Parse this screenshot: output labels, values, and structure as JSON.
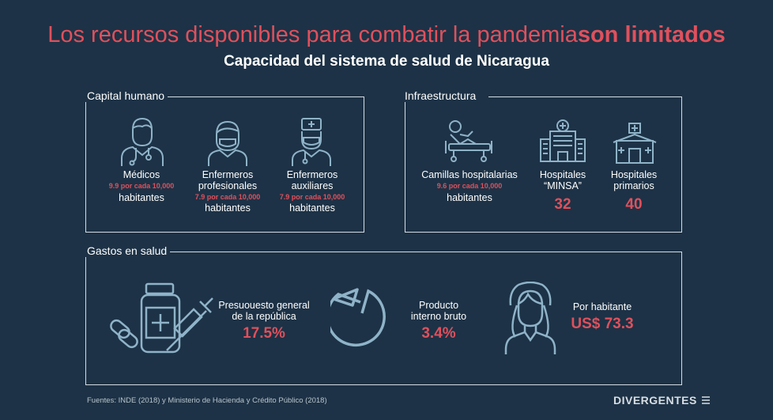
{
  "header": {
    "title_main": "Los recursos disponibles para combatir la pandemia",
    "title_highlight": "son limitados",
    "subtitle": "Capacidad del sistema de salud de Nicaragua"
  },
  "capital_humano": {
    "label": "Capital humano",
    "items": [
      {
        "icon": "doctor-icon",
        "label": "Médicos",
        "rate": "9.9 por cada 10,000",
        "unit": "habitantes"
      },
      {
        "icon": "nurse-icon",
        "label": "Enfermeros profesionales",
        "rate": "7.9 por cada 10,000",
        "unit": "habitantes"
      },
      {
        "icon": "auxiliary-nurse-icon",
        "label": "Enfermeros auxiliares",
        "rate": "7.9 por cada 10,000",
        "unit": "habitantes"
      }
    ]
  },
  "infraestructura": {
    "label": "Infraestructura",
    "items": [
      {
        "icon": "hospital-bed-icon",
        "label": "Camillas hospitalarias",
        "rate": "9.6 por cada 10,000",
        "unit": "habitantes"
      },
      {
        "icon": "hospital-building-icon",
        "label": "Hospitales “MINSA”",
        "value": "32"
      },
      {
        "icon": "primary-hospital-icon",
        "label": "Hospitales primarios",
        "value": "40"
      }
    ]
  },
  "gastos": {
    "label": "Gastos en salud",
    "items": [
      {
        "icon": "medicine-icon",
        "label": "Presuouesto general de la república",
        "value": "17.5%"
      },
      {
        "icon": "pie-icon",
        "label": "Producto interno bruto",
        "value": "3.4%"
      },
      {
        "icon": "woman-icon",
        "label": "Por habitante",
        "value": "US$ 73.3"
      }
    ]
  },
  "footer": {
    "source": "Fuentes: INDE (2018) y Ministerio de Hacienda y Crédito Público (2018)",
    "brand": "DIVERGENTES"
  },
  "colors": {
    "background": "#1d3246",
    "accent": "#e0505c",
    "icon": "#8fb3c8",
    "line": "#d4dde3"
  }
}
